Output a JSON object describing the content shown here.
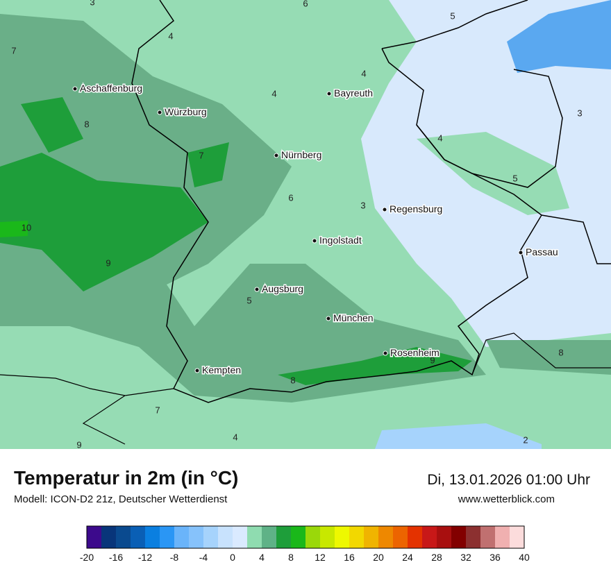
{
  "title": "Temperatur in 2m (in °C)",
  "model": "Modell: ICON-D2 21z, Deutscher Wetterdienst",
  "datetime": "Di, 13.01.2026 01:00 Uhr",
  "website": "www.wetterblick.com",
  "cities": [
    {
      "name": "Aschaffenburg"
    },
    {
      "name": "Würzburg"
    },
    {
      "name": "Bayreuth"
    },
    {
      "name": "Nürnberg"
    },
    {
      "name": "Regensburg"
    },
    {
      "name": "Ingolstadt"
    },
    {
      "name": "Passau"
    },
    {
      "name": "Augsburg"
    },
    {
      "name": "München"
    },
    {
      "name": "Rosenheim"
    },
    {
      "name": "Kempten"
    }
  ],
  "contour_labels": [
    "3",
    "6",
    "5",
    "4",
    "7",
    "4",
    "4",
    "3",
    "8",
    "4",
    "7",
    "5",
    "6",
    "3",
    "10",
    "9",
    "5",
    "9",
    "8",
    "8",
    "7",
    "9",
    "4",
    "2"
  ],
  "legend": {
    "colors": [
      "#3c0a8c",
      "#08357a",
      "#0a4a8f",
      "#0a5fb5",
      "#0a7fe0",
      "#2a96f5",
      "#6ab4fa",
      "#86c2fb",
      "#a6d3fc",
      "#c8e2fd",
      "#daeaff",
      "#8fdcb0",
      "#5fb287",
      "#1e9e3a",
      "#1ab81a",
      "#9ad80a",
      "#c8e800",
      "#eef800",
      "#f2d800",
      "#f0b400",
      "#ee8800",
      "#ec6400",
      "#e43200",
      "#c81818",
      "#a80f0f",
      "#820000",
      "#8c3030",
      "#c07070",
      "#f0b0b0",
      "#fcdcdc"
    ],
    "ticks": [
      -20,
      -16,
      -12,
      -8,
      -4,
      0,
      4,
      8,
      12,
      16,
      20,
      24,
      28,
      32,
      36,
      40
    ]
  }
}
